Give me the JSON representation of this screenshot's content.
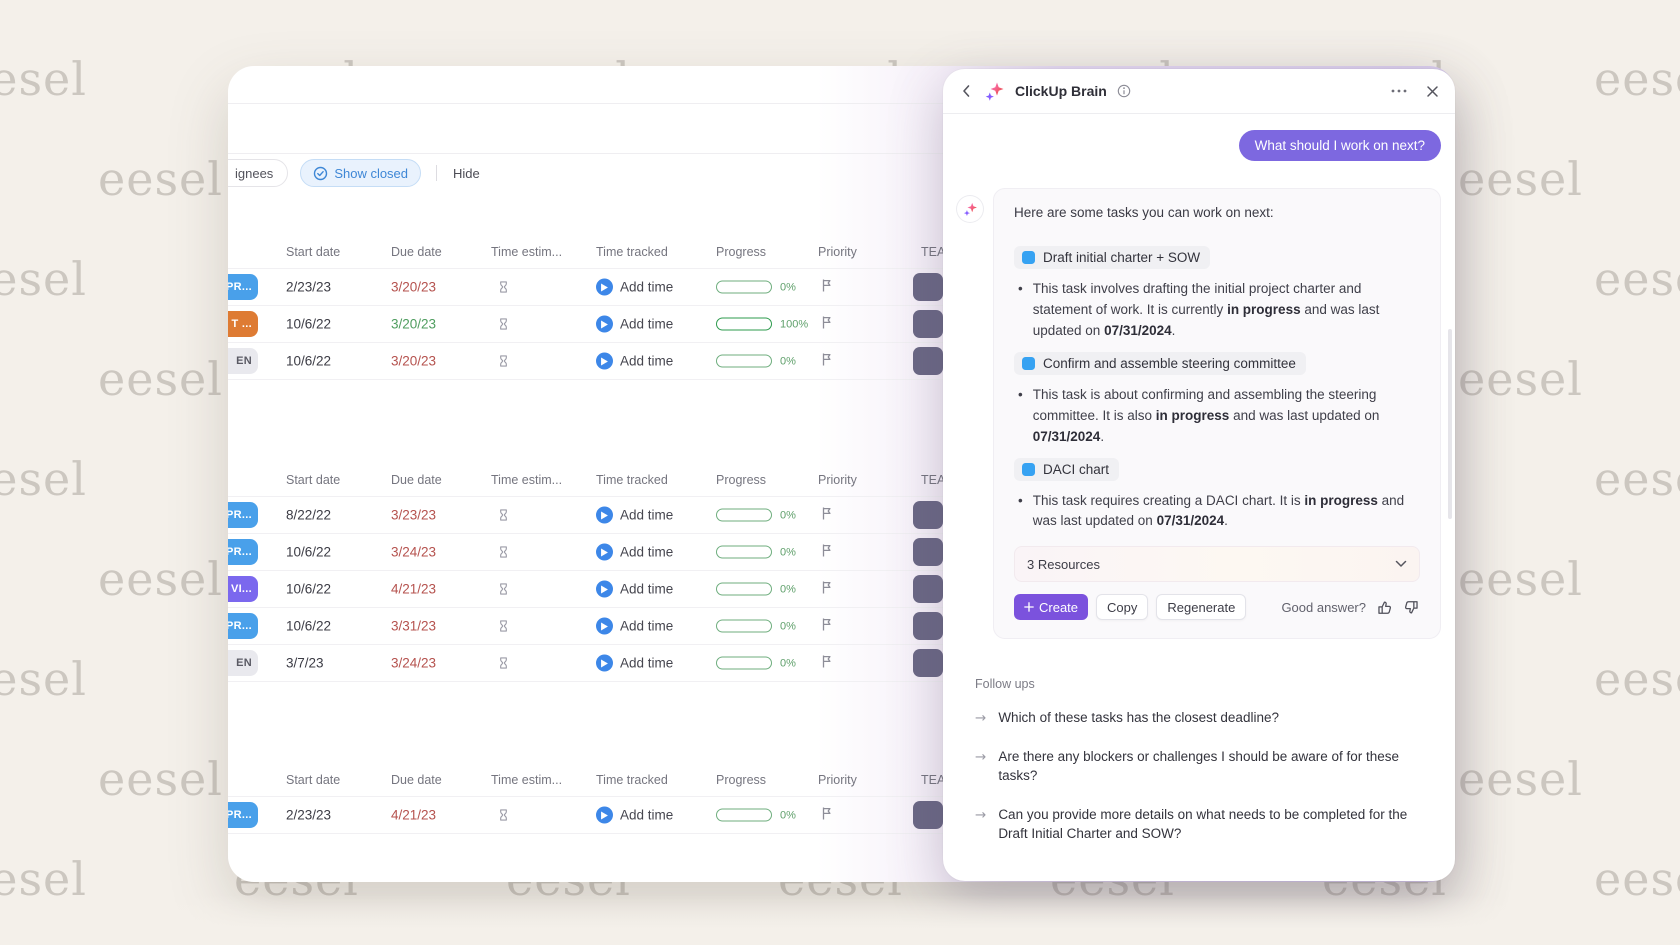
{
  "watermark": {
    "text": "eesel"
  },
  "board": {
    "toolbar": {
      "assignees_label": "ignees",
      "show_closed_label": "Show closed",
      "hide_label": "Hide"
    },
    "columns": [
      "Start date",
      "Due date",
      "Time estim...",
      "Time tracked",
      "Progress",
      "Priority",
      "TEA"
    ],
    "add_time_label": "Add time",
    "groups": [
      {
        "rows": [
          {
            "status": {
              "label": "PR...",
              "bg": "#49a0ea",
              "fg": "#ffffff"
            },
            "start": "2/23/23",
            "due": "3/20/23",
            "due_tone": "red",
            "progress_pct": 0,
            "progress_label": "0%"
          },
          {
            "status": {
              "label": "T ...",
              "bg": "#de7b33",
              "fg": "#ffffff"
            },
            "start": "10/6/22",
            "due": "3/20/23",
            "due_tone": "green",
            "progress_pct": 100,
            "progress_label": "100%"
          },
          {
            "status": {
              "label": "EN",
              "bg": "#e9e9ee",
              "fg": "#5a5a64"
            },
            "start": "10/6/22",
            "due": "3/20/23",
            "due_tone": "red",
            "progress_pct": 0,
            "progress_label": "0%"
          }
        ]
      },
      {
        "rows": [
          {
            "status": {
              "label": "PR...",
              "bg": "#49a0ea",
              "fg": "#ffffff"
            },
            "start": "8/22/22",
            "due": "3/23/23",
            "due_tone": "red",
            "progress_pct": 0,
            "progress_label": "0%"
          },
          {
            "status": {
              "label": "PR...",
              "bg": "#49a0ea",
              "fg": "#ffffff"
            },
            "start": "10/6/22",
            "due": "3/24/23",
            "due_tone": "red",
            "progress_pct": 0,
            "progress_label": "0%"
          },
          {
            "status": {
              "label": "VI...",
              "bg": "#7b68ee",
              "fg": "#ffffff"
            },
            "start": "10/6/22",
            "due": "4/21/23",
            "due_tone": "red",
            "progress_pct": 0,
            "progress_label": "0%"
          },
          {
            "status": {
              "label": "PR...",
              "bg": "#49a0ea",
              "fg": "#ffffff"
            },
            "start": "10/6/22",
            "due": "3/31/23",
            "due_tone": "red",
            "progress_pct": 0,
            "progress_label": "0%"
          },
          {
            "status": {
              "label": "EN",
              "bg": "#e9e9ee",
              "fg": "#5a5a64"
            },
            "start": "3/7/23",
            "due": "3/24/23",
            "due_tone": "red",
            "progress_pct": 0,
            "progress_label": "0%"
          }
        ]
      },
      {
        "rows": [
          {
            "status": {
              "label": "PR...",
              "bg": "#49a0ea",
              "fg": "#ffffff"
            },
            "start": "2/23/23",
            "due": "4/21/23",
            "due_tone": "red",
            "progress_pct": 0,
            "progress_label": "0%"
          }
        ]
      }
    ]
  },
  "brain": {
    "title": "ClickUp Brain",
    "user_message": "What should I work on next?",
    "response": {
      "intro": "Here are some tasks you can work on next:",
      "items": [
        {
          "task": "Draft initial charter + SOW",
          "parts": [
            {
              "t": "This task involves drafting the initial project charter and statement of work. It is currently "
            },
            {
              "t": "in progress",
              "b": true
            },
            {
              "t": " and was last updated on "
            },
            {
              "t": "07/31/2024",
              "b": true
            },
            {
              "t": "."
            }
          ]
        },
        {
          "task": "Confirm and assemble steering committee",
          "parts": [
            {
              "t": "This task is about confirming and assembling the steering committee. It is also "
            },
            {
              "t": "in progress",
              "b": true
            },
            {
              "t": " and was last updated on "
            },
            {
              "t": "07/31/2024",
              "b": true
            },
            {
              "t": "."
            }
          ]
        },
        {
          "task": "DACI chart",
          "parts": [
            {
              "t": "This task requires creating a DACI chart. It is "
            },
            {
              "t": "in progress",
              "b": true
            },
            {
              "t": " and was last updated on "
            },
            {
              "t": "07/31/2024",
              "b": true
            },
            {
              "t": "."
            }
          ]
        }
      ],
      "resources_label": "3 Resources",
      "create_label": "Create",
      "copy_label": "Copy",
      "regenerate_label": "Regenerate",
      "feedback_label": "Good answer?"
    },
    "followups": {
      "label": "Follow ups",
      "items": [
        "Which of these tasks has the closest deadline?",
        "Are there any blockers or challenges I should be aware of for these tasks?",
        "Can you provide more details on what needs to be completed for the Draft Initial Charter and SOW?"
      ]
    }
  }
}
